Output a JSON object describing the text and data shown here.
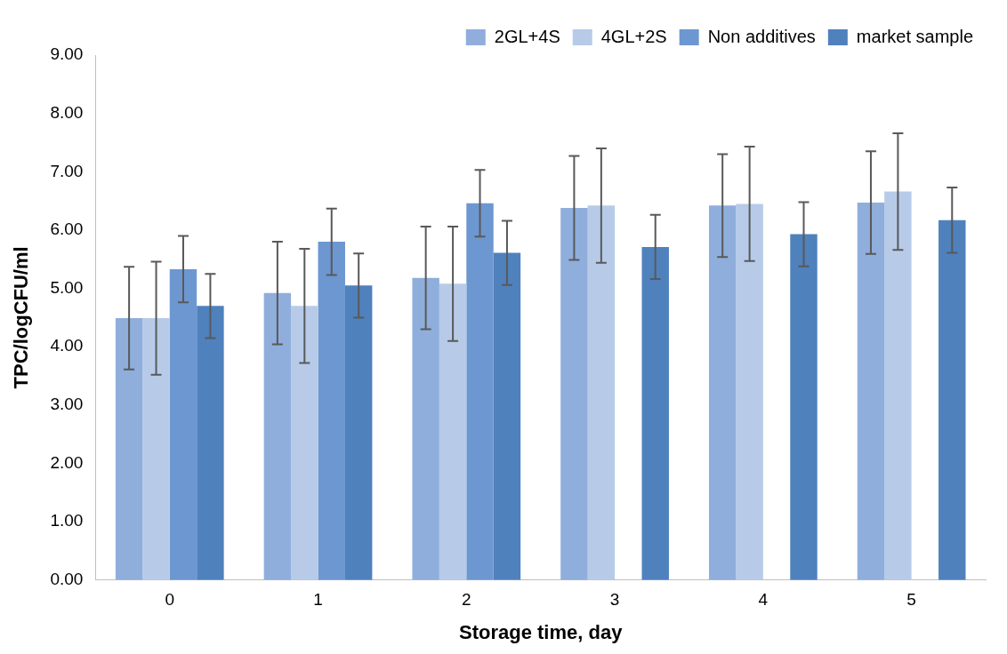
{
  "chart_data": {
    "type": "bar",
    "xlabel": "Storage time, day",
    "ylabel": "TPC/logCFU/ml",
    "categories": [
      "0",
      "1",
      "2",
      "3",
      "4",
      "5"
    ],
    "series": [
      {
        "name": "2GL+4S",
        "color": "#8faedc",
        "values": [
          4.49,
          4.92,
          5.18,
          6.38,
          6.42,
          6.47
        ],
        "errors": [
          0.88,
          0.88,
          0.88,
          0.89,
          0.88,
          0.88
        ]
      },
      {
        "name": "4GL+2S",
        "color": "#b7cbe9",
        "values": [
          4.49,
          4.7,
          5.08,
          6.42,
          6.45,
          6.66
        ],
        "errors": [
          0.97,
          0.98,
          0.98,
          0.98,
          0.98,
          1.0
        ]
      },
      {
        "name": "Non additives",
        "color": "#6d97d0",
        "values": [
          5.33,
          5.8,
          6.46,
          null,
          null,
          null
        ],
        "errors": [
          0.57,
          0.57,
          0.57,
          null,
          null,
          null
        ]
      },
      {
        "name": "market sample",
        "color": "#4f81bd",
        "values": [
          4.7,
          5.05,
          5.61,
          5.71,
          5.93,
          6.17
        ],
        "errors": [
          0.55,
          0.55,
          0.55,
          0.55,
          0.55,
          0.56
        ]
      }
    ],
    "ylim": [
      0,
      9
    ],
    "yticks": [
      {
        "value": 0,
        "label": "0.00"
      },
      {
        "value": 1,
        "label": "1.00"
      },
      {
        "value": 2,
        "label": "2.00"
      },
      {
        "value": 3,
        "label": "3.00"
      },
      {
        "value": 4,
        "label": "4.00"
      },
      {
        "value": 5,
        "label": "5.00"
      },
      {
        "value": 6,
        "label": "6.00"
      },
      {
        "value": 7,
        "label": "7.00"
      },
      {
        "value": 8,
        "label": "8.00"
      },
      {
        "value": 9,
        "label": "9.00"
      }
    ],
    "grid": false,
    "legend": "top right"
  }
}
